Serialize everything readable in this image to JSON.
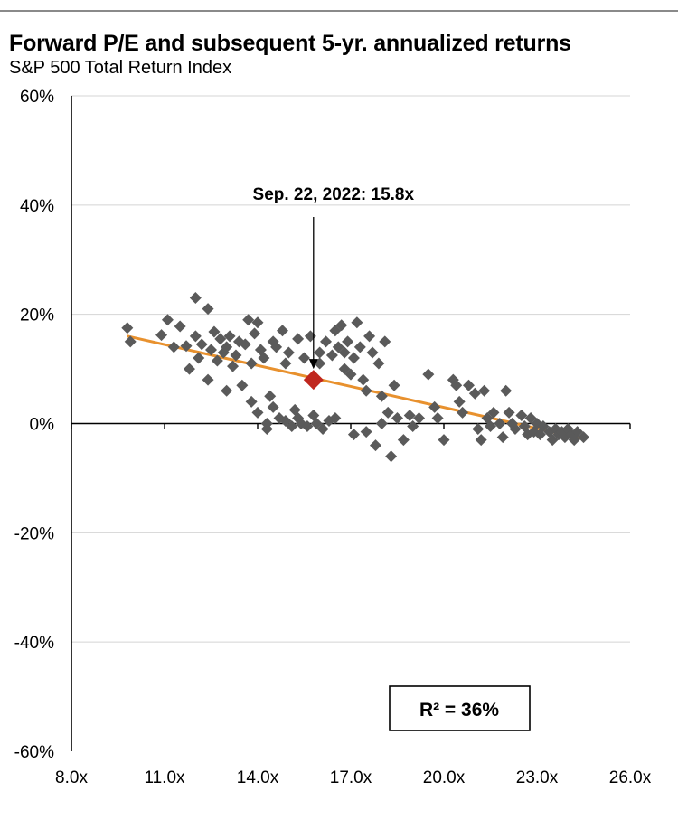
{
  "chart_data": {
    "type": "scatter",
    "title": "Forward P/E and subsequent 5-yr. annualized returns",
    "subtitle": "S&P 500 Total Return Index",
    "xlim": [
      8,
      26
    ],
    "ylim": [
      -60,
      60
    ],
    "x_ticks": [
      "8.0x",
      "11.0x",
      "14.0x",
      "17.0x",
      "20.0x",
      "23.0x",
      "26.0x"
    ],
    "y_ticks": [
      "60%",
      "40%",
      "20%",
      "0%",
      "-20%",
      "-40%",
      "-60%"
    ],
    "x_tick_values": [
      8,
      11,
      14,
      17,
      20,
      23,
      26
    ],
    "y_tick_values": [
      60,
      40,
      20,
      0,
      -20,
      -40,
      -60
    ],
    "grid": "horizontal",
    "series": [
      {
        "color": "#5a5a5a",
        "marker": "diamond",
        "points": [
          [
            9.8,
            17.5
          ],
          [
            9.9,
            15.0
          ],
          [
            10.9,
            16.2
          ],
          [
            11.1,
            19.0
          ],
          [
            11.3,
            14.0
          ],
          [
            11.5,
            17.8
          ],
          [
            11.7,
            14.2
          ],
          [
            11.8,
            10.0
          ],
          [
            12.0,
            23.0
          ],
          [
            12.0,
            16.0
          ],
          [
            12.1,
            12.0
          ],
          [
            12.2,
            14.5
          ],
          [
            12.4,
            21.0
          ],
          [
            12.4,
            8.0
          ],
          [
            12.5,
            13.5
          ],
          [
            12.6,
            16.8
          ],
          [
            12.7,
            11.5
          ],
          [
            12.8,
            15.5
          ],
          [
            12.9,
            13.0
          ],
          [
            13.0,
            14.0
          ],
          [
            13.0,
            6.0
          ],
          [
            13.1,
            16.0
          ],
          [
            13.2,
            10.5
          ],
          [
            13.3,
            12.5
          ],
          [
            13.4,
            15.0
          ],
          [
            13.5,
            7.0
          ],
          [
            13.6,
            14.5
          ],
          [
            13.7,
            19.0
          ],
          [
            13.8,
            11.0
          ],
          [
            13.8,
            4.0
          ],
          [
            13.9,
            16.5
          ],
          [
            14.0,
            2.0
          ],
          [
            14.0,
            18.5
          ],
          [
            14.1,
            13.5
          ],
          [
            14.2,
            12.0
          ],
          [
            14.3,
            0.0
          ],
          [
            14.3,
            -1.0
          ],
          [
            14.4,
            5.0
          ],
          [
            14.5,
            15.0
          ],
          [
            14.5,
            3.0
          ],
          [
            14.6,
            14.0
          ],
          [
            14.7,
            1.0
          ],
          [
            14.8,
            17.0
          ],
          [
            14.9,
            0.5
          ],
          [
            14.9,
            11.0
          ],
          [
            15.0,
            13.0
          ],
          [
            15.1,
            -0.5
          ],
          [
            15.2,
            2.5
          ],
          [
            15.3,
            15.5
          ],
          [
            15.3,
            1.0
          ],
          [
            15.4,
            0.0
          ],
          [
            15.5,
            12.0
          ],
          [
            15.6,
            -0.5
          ],
          [
            15.7,
            16.0
          ],
          [
            15.8,
            1.5
          ],
          [
            15.9,
            0.0
          ],
          [
            16.0,
            13.0
          ],
          [
            16.0,
            11.0
          ],
          [
            16.1,
            -1.0
          ],
          [
            16.2,
            15.0
          ],
          [
            16.3,
            0.5
          ],
          [
            16.4,
            12.5
          ],
          [
            16.5,
            17.0
          ],
          [
            16.5,
            1.0
          ],
          [
            16.6,
            14.0
          ],
          [
            16.7,
            18.0
          ],
          [
            16.8,
            10.0
          ],
          [
            16.8,
            13.0
          ],
          [
            16.9,
            15.0
          ],
          [
            17.0,
            9.0
          ],
          [
            17.1,
            -2.0
          ],
          [
            17.1,
            12.0
          ],
          [
            17.2,
            18.5
          ],
          [
            17.3,
            14.0
          ],
          [
            17.4,
            8.0
          ],
          [
            17.5,
            6.0
          ],
          [
            17.5,
            -1.5
          ],
          [
            17.6,
            16.0
          ],
          [
            17.7,
            13.0
          ],
          [
            17.8,
            -4.0
          ],
          [
            17.9,
            11.0
          ],
          [
            18.0,
            5.0
          ],
          [
            18.0,
            0.0
          ],
          [
            18.1,
            15.0
          ],
          [
            18.2,
            2.0
          ],
          [
            18.3,
            -6.0
          ],
          [
            18.4,
            7.0
          ],
          [
            18.5,
            1.0
          ],
          [
            18.7,
            -3.0
          ],
          [
            18.9,
            1.5
          ],
          [
            19.0,
            -0.5
          ],
          [
            19.2,
            1.0
          ],
          [
            19.5,
            9.0
          ],
          [
            19.7,
            3.0
          ],
          [
            19.8,
            1.0
          ],
          [
            20.0,
            -3.0
          ],
          [
            20.3,
            8.0
          ],
          [
            20.4,
            7.0
          ],
          [
            20.5,
            4.0
          ],
          [
            20.6,
            2.0
          ],
          [
            20.8,
            7.0
          ],
          [
            21.0,
            5.5
          ],
          [
            21.1,
            -1.0
          ],
          [
            21.2,
            -3.0
          ],
          [
            21.3,
            6.0
          ],
          [
            21.4,
            1.0
          ],
          [
            21.5,
            -0.5
          ],
          [
            21.6,
            2.0
          ],
          [
            21.8,
            0.0
          ],
          [
            21.9,
            -2.5
          ],
          [
            22.0,
            6.0
          ],
          [
            22.1,
            2.0
          ],
          [
            22.2,
            0.0
          ],
          [
            22.3,
            -1.0
          ],
          [
            22.5,
            1.5
          ],
          [
            22.6,
            -0.5
          ],
          [
            22.7,
            -2.0
          ],
          [
            22.8,
            1.0
          ],
          [
            22.9,
            -1.5
          ],
          [
            23.0,
            0.0
          ],
          [
            23.1,
            -2.0
          ],
          [
            23.2,
            -0.5
          ],
          [
            23.4,
            -1.5
          ],
          [
            23.5,
            -3.0
          ],
          [
            23.6,
            -1.0
          ],
          [
            23.7,
            -2.0
          ],
          [
            23.8,
            -1.5
          ],
          [
            23.9,
            -2.5
          ],
          [
            24.0,
            -1.0
          ],
          [
            24.1,
            -2.0
          ],
          [
            24.2,
            -3.0
          ],
          [
            24.3,
            -1.5
          ],
          [
            24.5,
            -2.5
          ]
        ]
      }
    ],
    "highlight": {
      "x": 15.8,
      "y": 8.0,
      "color": "#c0271e",
      "label": "Sep. 22, 2022:  15.8x"
    },
    "trendline": {
      "color": "#e8912e",
      "x": [
        9.8,
        24.5
      ],
      "y": [
        16.0,
        -2.8
      ]
    },
    "r_squared_label": "R²  = 36%"
  }
}
